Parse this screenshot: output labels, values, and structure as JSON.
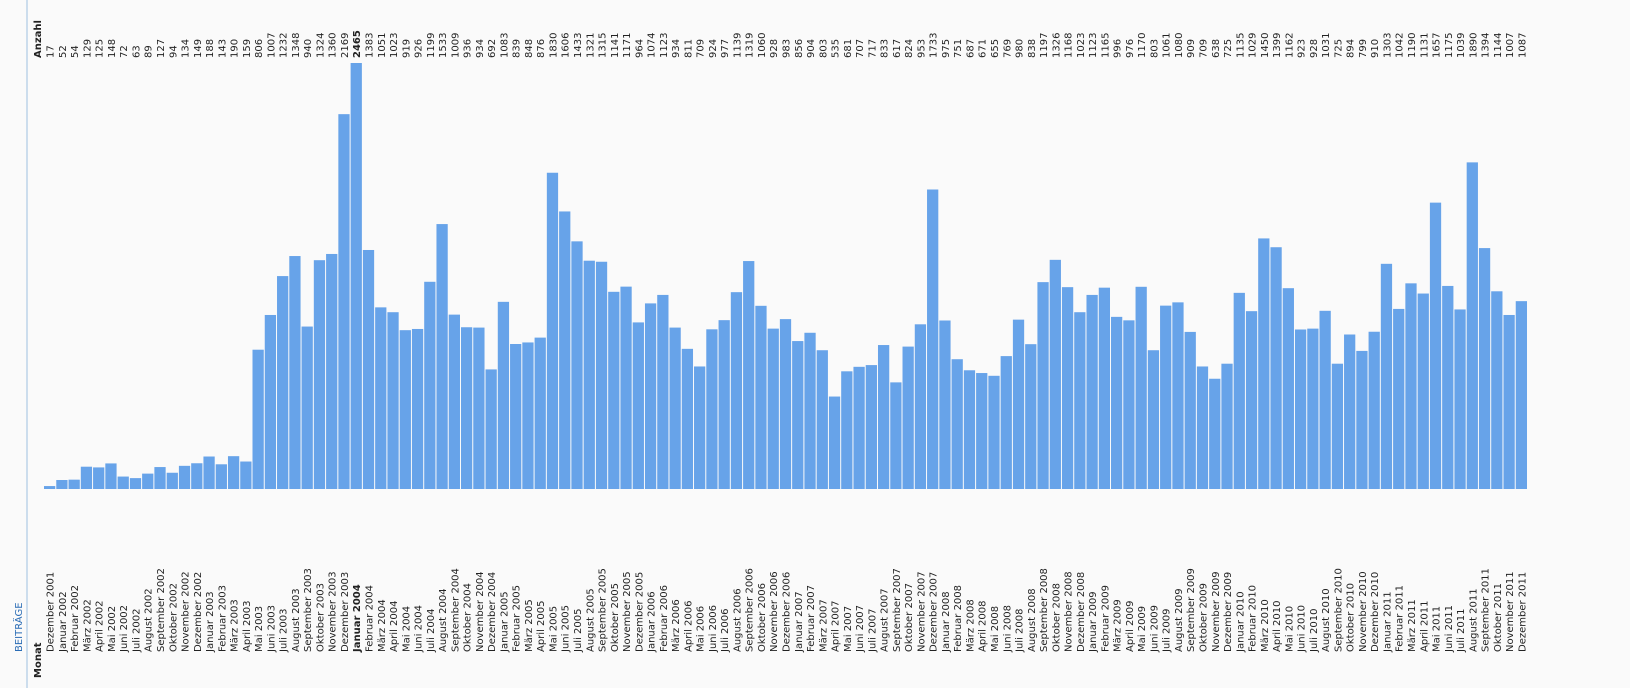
{
  "chart_data": {
    "type": "bar",
    "title": "BEITRÄGE",
    "y_label": "Anzahl",
    "x_label": "Monat",
    "color": "#67a3e9",
    "categories": [
      "Dezember 2001",
      "Januar 2002",
      "Februar 2002",
      "März 2002",
      "April 2002",
      "Mai 2002",
      "Juni 2002",
      "Juli 2002",
      "August 2002",
      "September 2002",
      "Oktober 2002",
      "November 2002",
      "Dezember 2002",
      "Januar 2003",
      "Februar 2003",
      "März 2003",
      "April 2003",
      "Mai 2003",
      "Juni 2003",
      "Juli 2003",
      "August 2003",
      "September 2003",
      "Oktober 2003",
      "November 2003",
      "Dezember 2003",
      "Januar 2004",
      "Februar 2004",
      "März 2004",
      "April 2004",
      "Mai 2004",
      "Juni 2004",
      "Juli 2004",
      "August 2004",
      "September 2004",
      "Oktober 2004",
      "November 2004",
      "Dezember 2004",
      "Januar 2005",
      "Februar 2005",
      "März 2005",
      "April 2005",
      "Mai 2005",
      "Juni 2005",
      "Juli 2005",
      "August 2005",
      "September 2005",
      "Oktober 2005",
      "November 2005",
      "Dezember 2005",
      "Januar 2006",
      "Februar 2006",
      "März 2006",
      "April 2006",
      "Mai 2006",
      "Juni 2006",
      "Juli 2006",
      "August 2006",
      "September 2006",
      "Oktober 2006",
      "November 2006",
      "Dezember 2006",
      "Januar 2007",
      "Februar 2007",
      "März 2007",
      "April 2007",
      "Mai 2007",
      "Juni 2007",
      "Juli 2007",
      "August 2007",
      "September 2007",
      "Oktober 2007",
      "November 2007",
      "Dezember 2007",
      "Januar 2008",
      "Februar 2008",
      "März 2008",
      "April 2008",
      "Mai 2008",
      "Juni 2008",
      "Juli 2008",
      "August 2008",
      "September 2008",
      "Oktober 2008",
      "November 2008",
      "Dezember 2008",
      "Januar 2009",
      "Februar 2009",
      "März 2009",
      "April 2009",
      "Mai 2009",
      "Juni 2009",
      "Juli 2009",
      "August 2009",
      "September 2009",
      "Oktober 2009",
      "November 2009",
      "Dezember 2009",
      "Januar 2010",
      "Februar 2010",
      "März 2010",
      "April 2010",
      "Mai 2010",
      "Juni 2010",
      "Juli 2010",
      "August 2010",
      "September 2010",
      "Oktober 2010",
      "November 2010",
      "Dezember 2010",
      "Januar 2011",
      "Februar 2011",
      "März 2011",
      "April 2011",
      "Mai 2011",
      "Juni 2011",
      "Juli 2011",
      "August 2011",
      "September 2011",
      "Oktober 2011",
      "November 2011",
      "Dezember 2011"
    ],
    "values": [
      17,
      52,
      54,
      129,
      125,
      148,
      72,
      63,
      89,
      127,
      94,
      134,
      149,
      188,
      143,
      190,
      159,
      806,
      1007,
      1232,
      1348,
      940,
      1324,
      1360,
      2169,
      2465,
      1383,
      1051,
      1023,
      919,
      926,
      1199,
      1533,
      1009,
      936,
      934,
      692,
      1083,
      839,
      848,
      876,
      1830,
      1606,
      1433,
      1321,
      1315,
      1141,
      1171,
      964,
      1074,
      1123,
      934,
      811,
      709,
      924,
      977,
      1139,
      1319,
      1060,
      928,
      983,
      856,
      904,
      803,
      535,
      681,
      707,
      717,
      833,
      617,
      824,
      953,
      1733,
      975,
      751,
      687,
      671,
      655,
      769,
      980,
      838,
      1197,
      1326,
      1168,
      1023,
      1123,
      1165,
      996,
      976,
      1170,
      803,
      1061,
      1080,
      909,
      709,
      638,
      725,
      1135,
      1029,
      1450,
      1399,
      1162,
      923,
      928,
      1031,
      725,
      894,
      799,
      910,
      1303,
      1042,
      1190,
      1131,
      1657,
      1175,
      1039,
      1890,
      1394,
      1144,
      1007,
      1087
    ]
  }
}
